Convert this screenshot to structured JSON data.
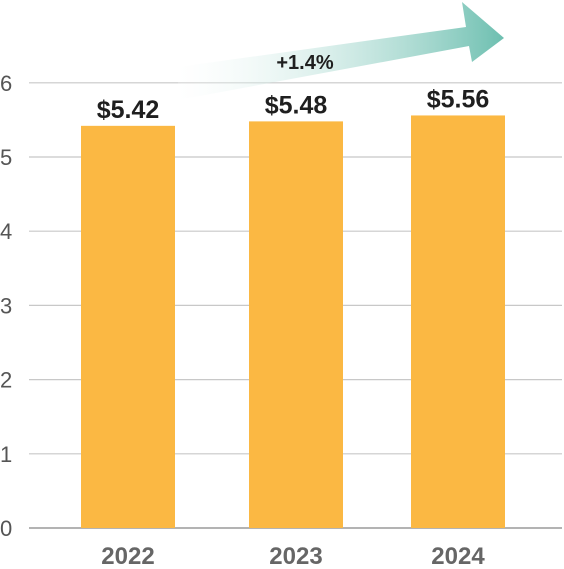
{
  "chart_data": {
    "type": "bar",
    "categories": [
      "2022",
      "2023",
      "2024"
    ],
    "values": [
      5.42,
      5.48,
      5.56
    ],
    "data_labels": [
      "$5.42",
      "$5.48",
      "$5.56"
    ],
    "y_ticks": [
      "0",
      "1",
      "2",
      "3",
      "4",
      "5",
      "6"
    ],
    "ylim": [
      0,
      6
    ],
    "grid": true,
    "annotation": "+1.4%",
    "title": "",
    "xlabel": "",
    "ylabel": ""
  },
  "colors": {
    "bar": "#FBB843",
    "grid": "#C8C8C8",
    "axis": "#9A9A9A",
    "arrow_end": "#6DBFB0",
    "arrow_start": "#FFFFFF"
  }
}
